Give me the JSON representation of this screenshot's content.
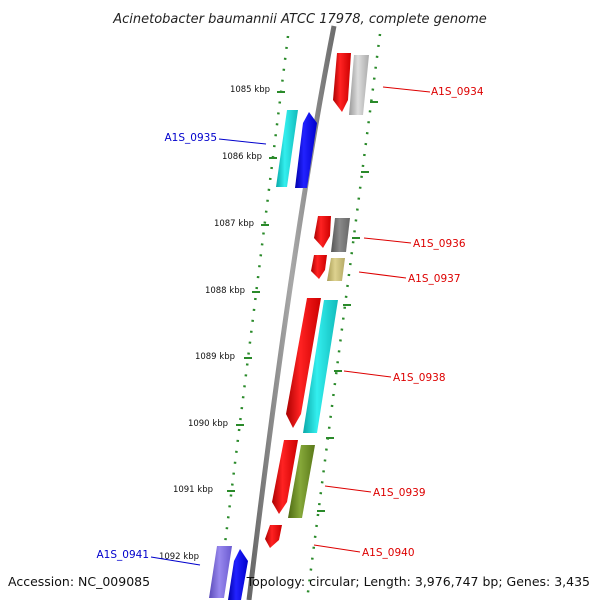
{
  "title": "Acinetobacter baumannii ATCC 17978, complete genome",
  "accession": "Accession: NC_009085",
  "topology": "Topology: circular; Length: 3,976,747 bp; Genes: 3,435",
  "ticks": [
    "1085 kbp",
    "1086 kbp",
    "1087 kbp",
    "1088 kbp",
    "1089 kbp",
    "1090 kbp",
    "1091 kbp",
    "1092 kbp"
  ],
  "genes": {
    "g0934": "A1S_0934",
    "g0935": "A1S_0935",
    "g0936": "A1S_0936",
    "g0937": "A1S_0937",
    "g0938": "A1S_0938",
    "g0939": "A1S_0939",
    "g0940": "A1S_0940",
    "g0941": "A1S_0941"
  },
  "colors": {
    "backbone": "#8c8c8c",
    "dots": "#2a8a2a",
    "gene_red": "#ee1111",
    "label_red": "#dd0000",
    "label_blue": "#0000cc",
    "cyan": "#22dddd",
    "blue": "#1111ee",
    "gray_light": "#bbbbbb",
    "gray_dark": "#777777",
    "khaki": "#c8bd78",
    "olive": "#6b8a24",
    "slate_blue": "#7b6ad8"
  }
}
